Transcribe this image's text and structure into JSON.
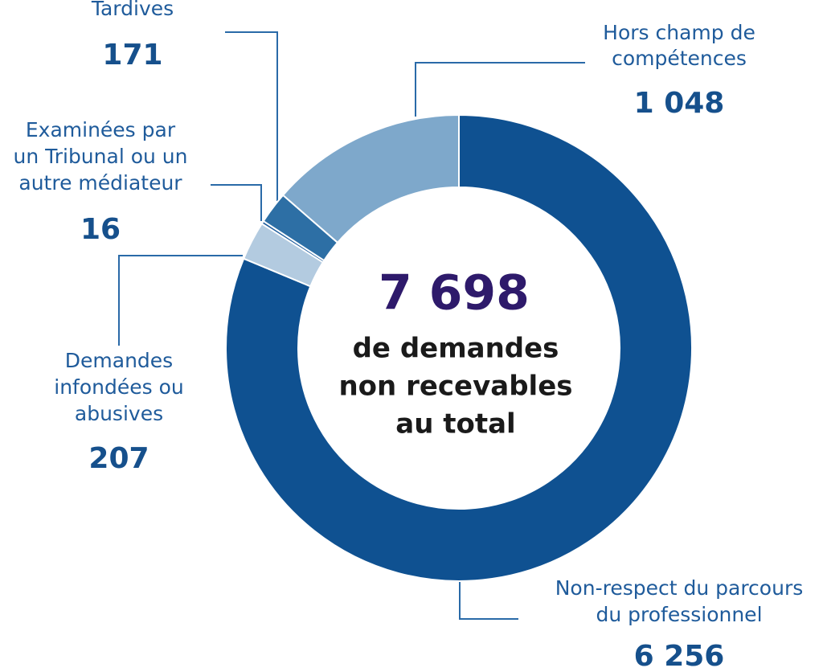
{
  "chart_data": {
    "type": "pie",
    "categories": [
      "Non-respect du parcours\ndu professionnel",
      "Demandes\ninfondées ou\nabusives",
      "Examinées par\nun Tribunal ou un\nautre médiateur",
      "Tardives",
      "Hors champ de\ncompétences"
    ],
    "values": [
      6256,
      207,
      16,
      171,
      1048
    ],
    "value_labels": [
      "6 256",
      "207",
      "16",
      "171",
      "1 048"
    ],
    "colors": [
      "#0f5191",
      "#b3cbe0",
      "#1d5c9c",
      "#2d6fa5",
      "#7ea8cb"
    ],
    "total_label": "7 698",
    "center_lines": [
      "de demandes",
      "non recevables",
      "au total"
    ]
  }
}
